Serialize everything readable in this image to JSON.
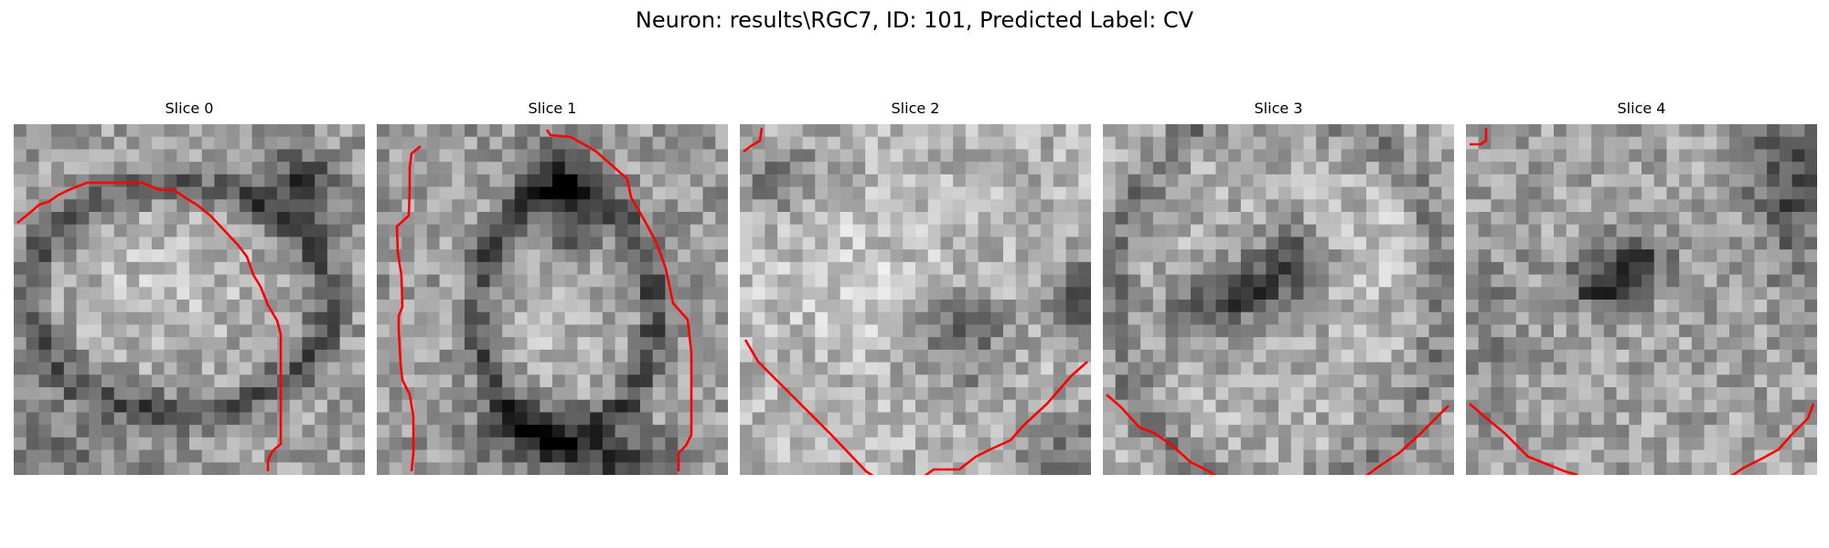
{
  "figure": {
    "title": "Neuron: results\\RGC7, ID: 101, Predicted Label: CV",
    "contour_color": "#ff0000",
    "colormap": "gray"
  },
  "slices": [
    {
      "label": "Slice 0"
    },
    {
      "label": "Slice 1"
    },
    {
      "label": "Slice 2"
    },
    {
      "label": "Slice 3"
    },
    {
      "label": "Slice 4"
    }
  ]
}
